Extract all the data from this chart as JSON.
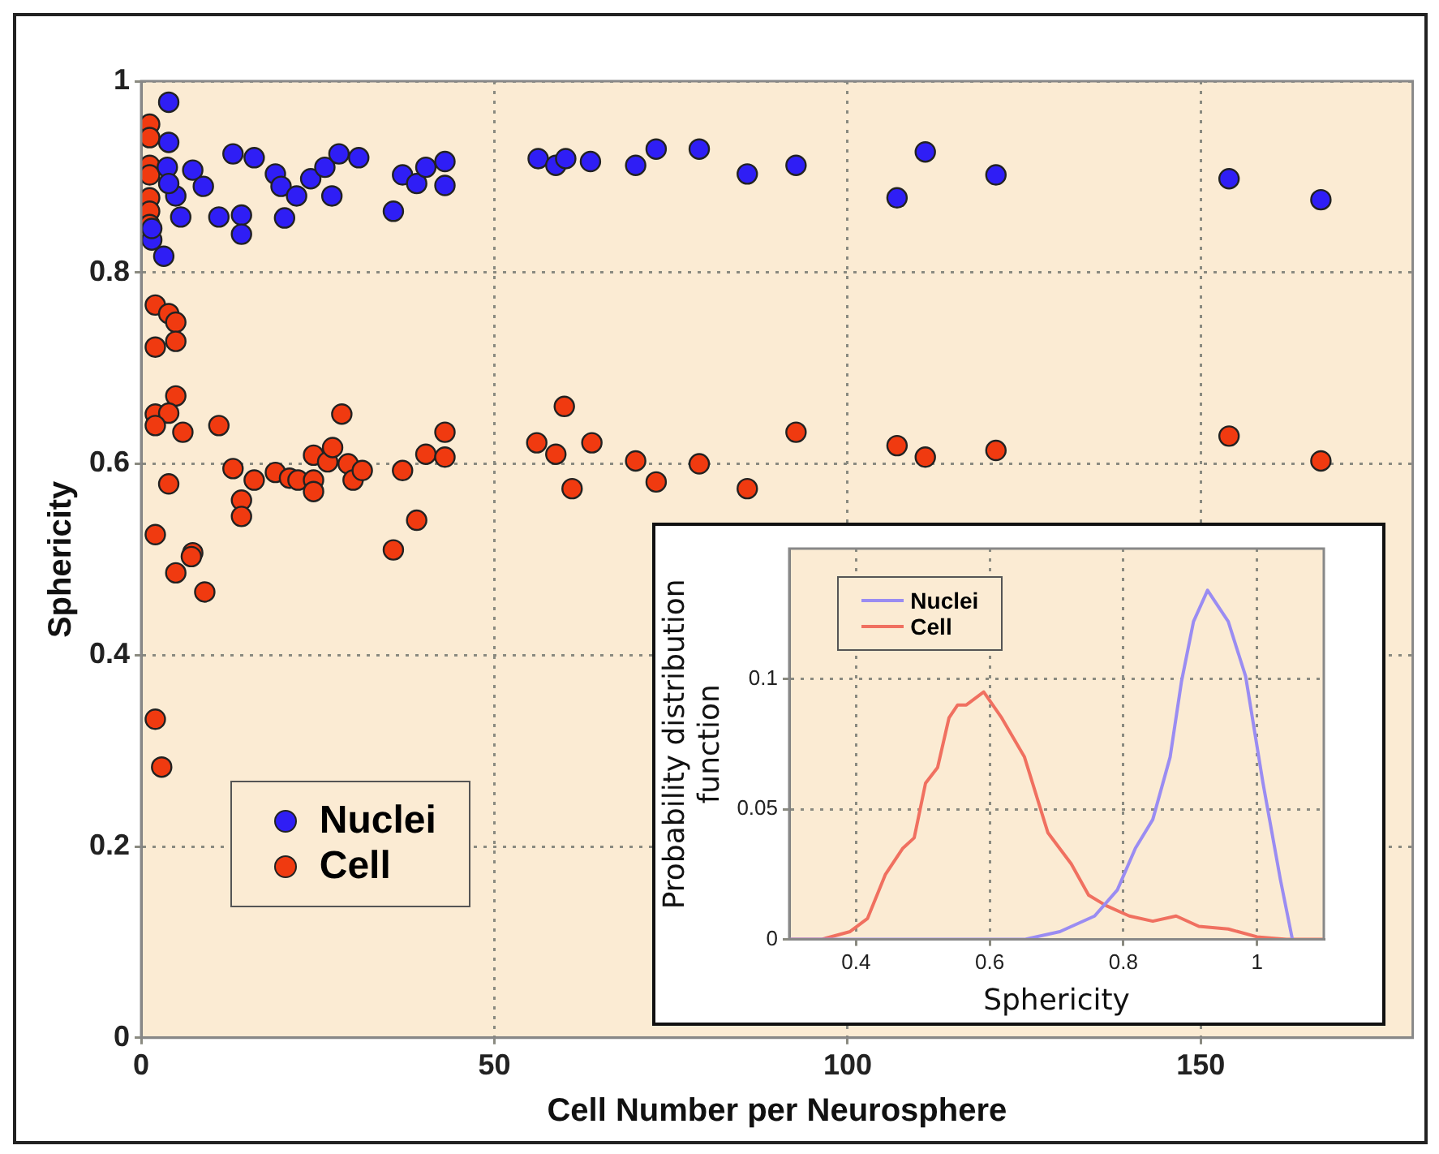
{
  "chart_data": [
    {
      "type": "scatter",
      "xlabel": "Cell Number per Neurosphere",
      "ylabel": "Sphericity",
      "xlim": [
        0,
        180
      ],
      "xticks": [
        0,
        50,
        100,
        150
      ],
      "ylim": [
        0,
        1
      ],
      "yticks": [
        0,
        0.2,
        0.4,
        0.6,
        0.8,
        1
      ],
      "grid": true,
      "legend": "bottom left",
      "marker": "circle",
      "series": [
        {
          "name": "Nuclei",
          "color": "#2f1ef5",
          "x": [
            3.9,
            3.9,
            3.7,
            7.3,
            8.8,
            4.9,
            5.6,
            11,
            14.2,
            14.2,
            13,
            16,
            19,
            19.8,
            20.3,
            22,
            24,
            26,
            27,
            28,
            30.8,
            35.7,
            37,
            39,
            40.3,
            43,
            43,
            3.2,
            1.5,
            1.5,
            3.9,
            56.2,
            58.7,
            60.1,
            63.6,
            70,
            72.9,
            79,
            85.8,
            92.7,
            107,
            111,
            121,
            154,
            167
          ],
          "values": [
            0.978,
            0.936,
            0.91,
            0.907,
            0.89,
            0.88,
            0.858,
            0.858,
            0.86,
            0.84,
            0.924,
            0.92,
            0.903,
            0.89,
            0.857,
            0.88,
            0.898,
            0.91,
            0.88,
            0.924,
            0.92,
            0.864,
            0.902,
            0.893,
            0.91,
            0.916,
            0.891,
            0.817,
            0.834,
            0.846,
            0.893,
            0.919,
            0.912,
            0.919,
            0.916,
            0.912,
            0.929,
            0.929,
            0.903,
            0.912,
            0.878,
            0.926,
            0.902,
            0.898,
            0.876
          ]
        },
        {
          "name": "Cell",
          "color": "#f03a10",
          "x": [
            1.2,
            1.2,
            1.2,
            1.2,
            1.2,
            1.2,
            1.2,
            2,
            3.9,
            4.9,
            2,
            4.9,
            4.9,
            2,
            3.9,
            2,
            5.9,
            11,
            28.4,
            3.9,
            2,
            7.3,
            13,
            14.2,
            14.2,
            16,
            19,
            21,
            22.2,
            24.4,
            24.4,
            24.4,
            26.4,
            27.1,
            29.3,
            30,
            31.3,
            37,
            39,
            40.3,
            43,
            43,
            35.7,
            56,
            58.7,
            59.9,
            61,
            63.8,
            70,
            72.9,
            79,
            85.8,
            92.7,
            107,
            111,
            121,
            154,
            167,
            7.1,
            4.9,
            9,
            2,
            2.9
          ],
          "values": [
            0.955,
            0.941,
            0.912,
            0.902,
            0.878,
            0.864,
            0.85,
            0.766,
            0.757,
            0.748,
            0.722,
            0.728,
            0.671,
            0.652,
            0.653,
            0.64,
            0.633,
            0.64,
            0.652,
            0.579,
            0.526,
            0.507,
            0.595,
            0.562,
            0.545,
            0.583,
            0.591,
            0.585,
            0.583,
            0.609,
            0.583,
            0.571,
            0.602,
            0.617,
            0.6,
            0.583,
            0.593,
            0.593,
            0.541,
            0.61,
            0.633,
            0.607,
            0.51,
            0.622,
            0.61,
            0.66,
            0.574,
            0.622,
            0.603,
            0.581,
            0.6,
            0.574,
            0.633,
            0.619,
            0.607,
            0.614,
            0.629,
            0.603,
            0.503,
            0.486,
            0.466,
            0.333,
            0.283
          ]
        }
      ]
    },
    {
      "type": "line",
      "xlabel": "Sphericity",
      "ylabel": "Probability distribution function",
      "xlim": [
        0.3,
        1.1
      ],
      "xticks": [
        0.4,
        0.6,
        0.8,
        1
      ],
      "ylim": [
        0,
        0.15
      ],
      "yticks": [
        0,
        0.05,
        0.1
      ],
      "grid": true,
      "legend": "top left",
      "line_style": "solid",
      "series": [
        {
          "name": "Nuclei",
          "color": "#9a8cf2",
          "x": [
            0.3,
            0.652,
            0.705,
            0.757,
            0.791,
            0.818,
            0.844,
            0.87,
            0.887,
            0.905,
            0.926,
            0.957,
            0.983,
            1.009,
            1.035,
            1.053
          ],
          "values": [
            0,
            0,
            0.003,
            0.009,
            0.019,
            0.035,
            0.046,
            0.07,
            0.099,
            0.122,
            0.134,
            0.122,
            0.101,
            0.06,
            0.023,
            0
          ]
        },
        {
          "name": "Cell",
          "color": "#f07060",
          "x": [
            0.3,
            0.348,
            0.391,
            0.417,
            0.444,
            0.47,
            0.487,
            0.504,
            0.522,
            0.539,
            0.552,
            0.565,
            0.591,
            0.618,
            0.652,
            0.687,
            0.722,
            0.748,
            0.774,
            0.809,
            0.844,
            0.879,
            0.913,
            0.957,
            1.0,
            1.044,
            1.1
          ],
          "values": [
            0,
            0,
            0.003,
            0.008,
            0.025,
            0.035,
            0.039,
            0.06,
            0.066,
            0.085,
            0.09,
            0.09,
            0.095,
            0.085,
            0.07,
            0.041,
            0.029,
            0.017,
            0.013,
            0.009,
            0.007,
            0.009,
            0.005,
            0.004,
            0.001,
            0,
            0
          ]
        }
      ]
    }
  ]
}
